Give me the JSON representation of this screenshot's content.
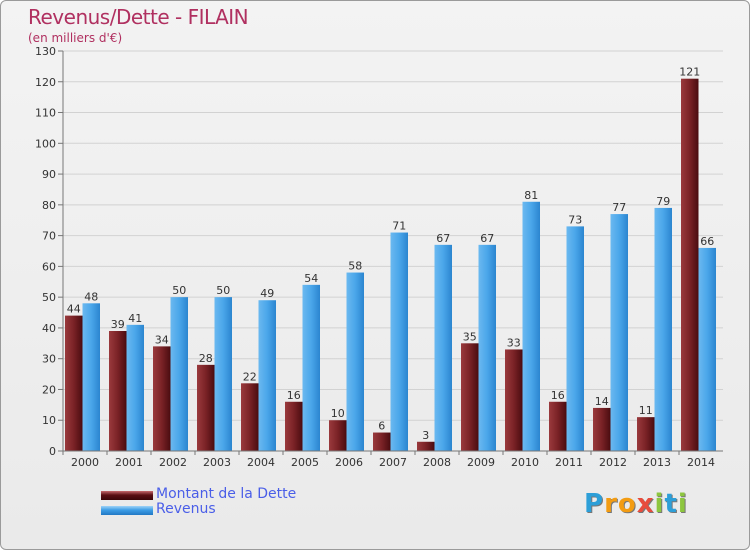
{
  "header": {
    "title": "Revenus/Dette - FILAIN",
    "subtitle": "(en milliers d'€)"
  },
  "legend": {
    "items": [
      {
        "label": "Montant de la Dette",
        "color": "#5a0f13"
      },
      {
        "label": "Revenus",
        "color": "#3d9de6"
      }
    ]
  },
  "logo": {
    "text": "Proxiti",
    "letters": [
      {
        "ch": "P",
        "color": "#2d9fd8"
      },
      {
        "ch": "r",
        "color": "#f39c12"
      },
      {
        "ch": "o",
        "color": "#f39c12"
      },
      {
        "ch": "x",
        "color": "#e74c3c"
      },
      {
        "ch": "i",
        "color": "#8dc63f"
      },
      {
        "ch": "t",
        "color": "#2d9fd8"
      },
      {
        "ch": "i",
        "color": "#8dc63f"
      }
    ]
  },
  "chart_data": {
    "type": "bar",
    "title": "Revenus/Dette - FILAIN",
    "subtitle": "(en milliers d'€)",
    "categories": [
      "2000",
      "2001",
      "2002",
      "2003",
      "2004",
      "2005",
      "2006",
      "2007",
      "2008",
      "2009",
      "2010",
      "2011",
      "2012",
      "2013",
      "2014"
    ],
    "series": [
      {
        "name": "Montant de la Dette",
        "color": "#5a0f13",
        "values": [
          44,
          39,
          34,
          28,
          22,
          16,
          10,
          6,
          3,
          35,
          33,
          16,
          14,
          11,
          121
        ]
      },
      {
        "name": "Revenus",
        "color": "#3d9de6",
        "values": [
          48,
          41,
          50,
          50,
          49,
          54,
          58,
          71,
          67,
          67,
          81,
          73,
          77,
          79,
          66
        ]
      }
    ],
    "ylim": [
      0,
      130
    ],
    "yticks": [
      0,
      10,
      20,
      30,
      40,
      50,
      60,
      70,
      80,
      90,
      100,
      110,
      120,
      130
    ],
    "grid": true,
    "legend_position": "bottom-left",
    "data_labels": true
  }
}
